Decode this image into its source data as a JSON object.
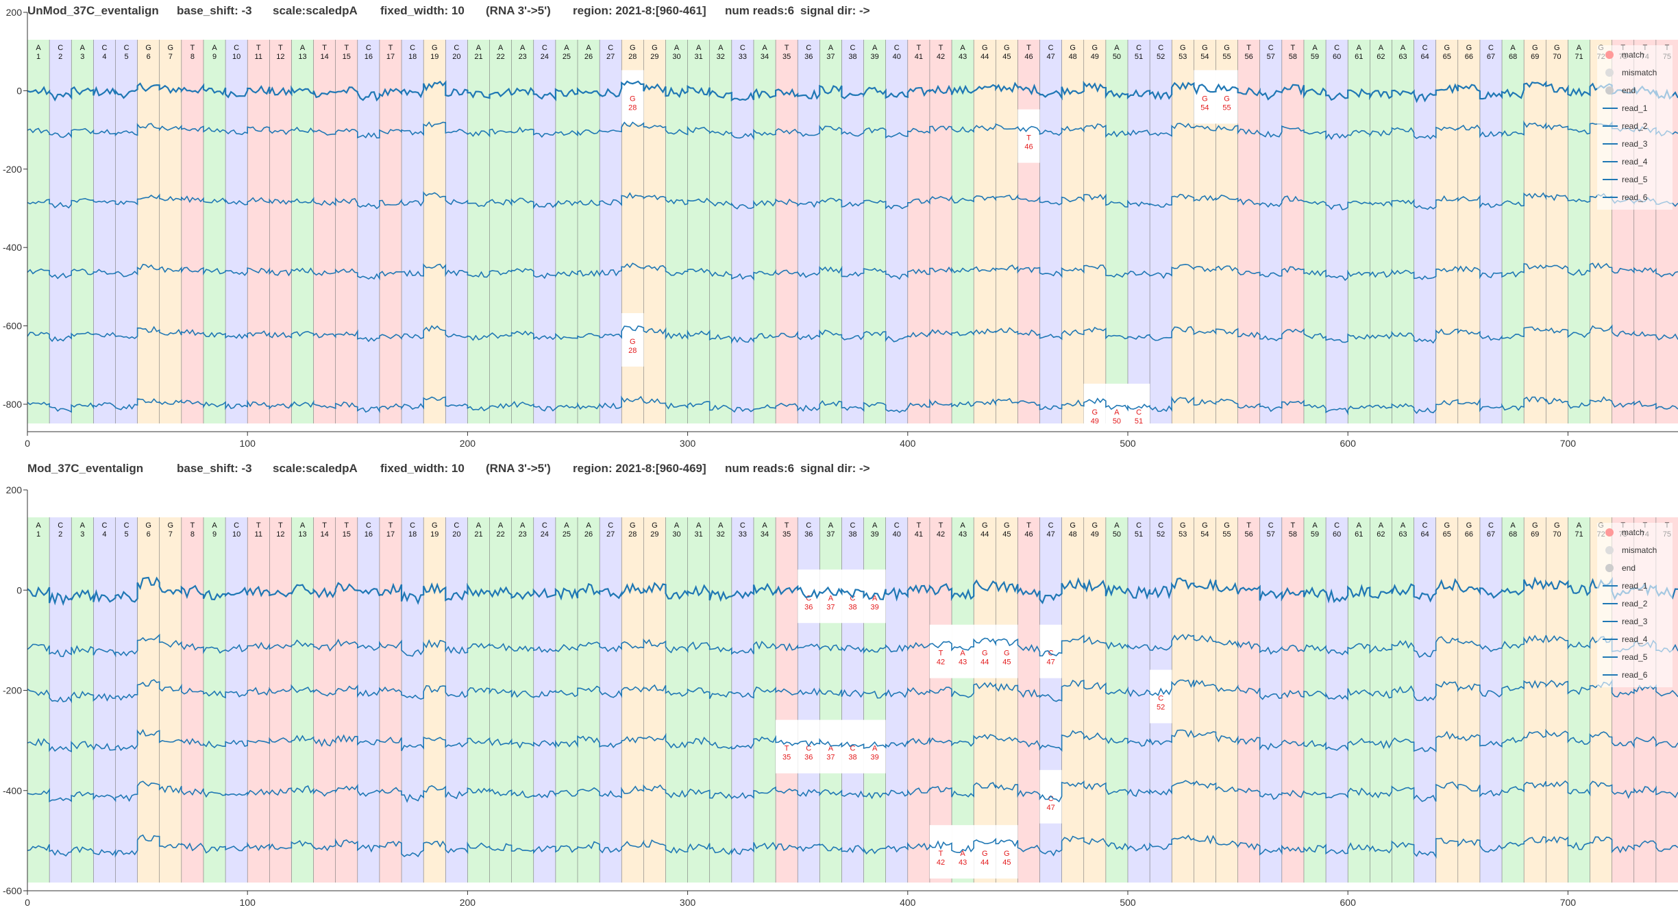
{
  "sequence": "ACACCGGTACTTATTCTCGCAAACAACGGAAACATCACACTTAGGTCGGACCGGGTCTACAAACGGCAGGAGTTT",
  "colors": {
    "A": "#b8f0b8",
    "C": "#c8c8ff",
    "G": "#ffe2b4",
    "T": "#ffc0c0",
    "signal": "#1f77b4",
    "mismatch": "#e31a1c"
  },
  "chart_data": [
    {
      "type": "line",
      "title": "UnMod_37C_eventalign",
      "header": [
        "UnMod_37C_eventalign",
        "base_shift: -3",
        "scale:scaledpA",
        "fixed_width: 10",
        "(RNA 3'->5')",
        "region: 2021-8:[960-461]",
        "num reads:6",
        "signal dir: ->"
      ],
      "xlim": [
        0,
        750
      ],
      "ylim": [
        -870,
        200
      ],
      "xticks": [
        0,
        100,
        200,
        300,
        400,
        500,
        600,
        700
      ],
      "yticks": [
        200,
        0,
        -200,
        -400,
        -600,
        -800
      ],
      "legend": [
        "match",
        "mismatch",
        "end",
        "read_1",
        "read_2",
        "read_3",
        "read_4",
        "read_5",
        "read_6"
      ],
      "series": [
        {
          "name": "read_1",
          "offset": 0,
          "mismatches": [
            28,
            54,
            55
          ]
        },
        {
          "name": "read_2",
          "offset": -100,
          "mismatches": [
            46
          ]
        },
        {
          "name": "read_3",
          "offset": -280,
          "mismatches": []
        },
        {
          "name": "read_4",
          "offset": -460,
          "mismatches": []
        },
        {
          "name": "read_5",
          "offset": -620,
          "mismatches": [
            28
          ]
        },
        {
          "name": "read_6",
          "offset": -800,
          "mismatches": [
            49,
            50,
            51
          ]
        }
      ]
    },
    {
      "type": "line",
      "title": "Mod_37C_eventalign",
      "header": [
        "Mod_37C_eventalign",
        "base_shift: -3",
        "scale:scaledpA",
        "fixed_width: 10",
        "(RNA 3'->5')",
        "region: 2021-8:[960-469]",
        "num reads:6",
        "signal dir: ->"
      ],
      "xlim": [
        0,
        750
      ],
      "ylim": [
        -600,
        200
      ],
      "xticks": [
        0,
        100,
        200,
        300,
        400,
        500,
        600,
        700
      ],
      "yticks": [
        200,
        0,
        -200,
        -400,
        -600
      ],
      "legend": [
        "match",
        "mismatch",
        "end",
        "read_1",
        "read_2",
        "read_3",
        "read_4",
        "read_5",
        "read_6"
      ],
      "series": [
        {
          "name": "read_1",
          "offset": 0,
          "mismatches": [
            36,
            37,
            38,
            39
          ]
        },
        {
          "name": "read_2",
          "offset": -110,
          "mismatches": [
            42,
            43,
            44,
            45,
            47
          ]
        },
        {
          "name": "read_3",
          "offset": -200,
          "mismatches": [
            52
          ]
        },
        {
          "name": "read_4",
          "offset": -300,
          "mismatches": [
            35,
            36,
            37,
            38,
            39
          ]
        },
        {
          "name": "read_5",
          "offset": -400,
          "mismatches": [
            47
          ]
        },
        {
          "name": "read_6",
          "offset": -510,
          "mismatches": [
            42,
            43,
            44,
            45
          ]
        }
      ]
    }
  ]
}
